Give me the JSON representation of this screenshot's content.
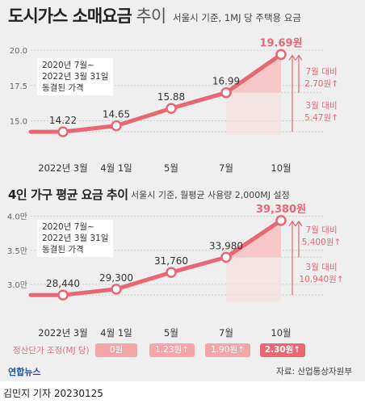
{
  "colors": {
    "line": "#e86772",
    "pale": "#f6c7c6",
    "grid": "#cccccc",
    "pill": "#f3a5a8",
    "pill_last": "#e86772"
  },
  "chart1": {
    "title_bold": "도시가스 소매요금",
    "title_thin": " 추이",
    "subtitle": "서울시 기준, 1MJ 당 주택용 요금",
    "note_lines": [
      "2020년 7월~",
      "2022년 3월 31일",
      "동결된 가격"
    ],
    "cmp1_lines": [
      "7월 대비",
      "2.70원↑"
    ],
    "cmp2_lines": [
      "3월 대비",
      "5.47원↑"
    ]
  },
  "chart2": {
    "title_bold": "4인 가구 평균 요금 추이",
    "subtitle": "서울시 기준, 월평균 사용량 2,000MJ 설정",
    "note_lines": [
      "2020년 7월~",
      "2022년 3월 31일",
      "동결된 가격"
    ],
    "cmp1_lines": [
      "7월 대비",
      "5,400원↑"
    ],
    "cmp2_lines": [
      "3월 대비",
      "10,940원↑"
    ]
  },
  "adjustment": {
    "label": "정산단가 조정(MJ 당)",
    "values": [
      "0원",
      "1.23원↑",
      "1.90원↑",
      "2.30원↑"
    ]
  },
  "logo": "연합뉴스",
  "source": "자료: 산업통상자원부",
  "byline": "김민지 기자  20230125",
  "chart_data": [
    {
      "type": "line",
      "title": "도시가스 소매요금 추이",
      "subtitle": "서울시 기준, 1MJ 당 주택용 요금",
      "categories": [
        "2022년 3월",
        "4월 1일",
        "5월",
        "7월",
        "10월"
      ],
      "values": [
        14.22,
        14.65,
        15.88,
        16.99,
        19.69
      ],
      "value_labels": [
        "14.22",
        "14.65",
        "15.88",
        "16.99",
        "19.69원"
      ],
      "yticks": [
        "15.0",
        "17.5",
        "20.0"
      ],
      "ylim": [
        14.0,
        20.4
      ],
      "grid": true
    },
    {
      "type": "line",
      "title": "4인 가구 평균 요금 추이",
      "subtitle": "서울시 기준, 월평균 사용량 2,000MJ 설정",
      "categories": [
        "2022년 3월",
        "4월 1일",
        "5월",
        "7월",
        "10월"
      ],
      "values": [
        28440,
        29300,
        31760,
        33980,
        39380
      ],
      "value_labels": [
        "28,440",
        "29,300",
        "31,760",
        "33,980",
        "39,380원"
      ],
      "yticks": [
        "3.0만",
        "3.5만",
        "4.0만"
      ],
      "ytick_values": [
        30000,
        35000,
        40000
      ],
      "ylim": [
        27500,
        41500
      ],
      "grid": true
    }
  ]
}
